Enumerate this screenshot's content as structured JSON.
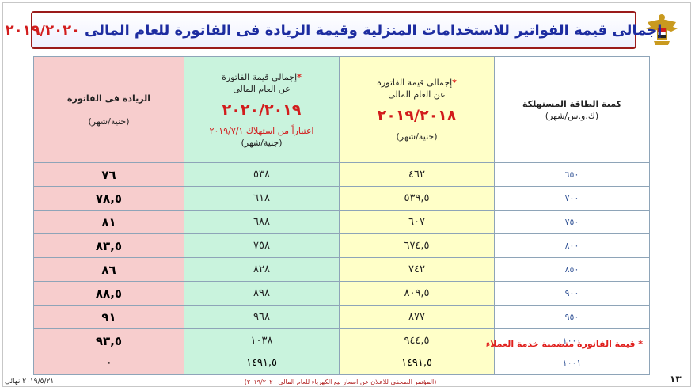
{
  "title": {
    "text": "إجمالى قيمة الفواتير للاستخدامات المنزلية وقيمة الزيادة فى الفاتورة للعام المالى",
    "year": "٢٠١٩/٢٠٢٠"
  },
  "table": {
    "headers": {
      "consumption": {
        "line1": "كمية الطاقة المستهلكة",
        "line2": "(ك.و.س/شهر)"
      },
      "bill_2018": {
        "star": "*",
        "line1": "إجمالى قيمة الفاتورة",
        "line2": "عن العام المالى",
        "year": "٢٠١٩/٢٠١٨",
        "unit": "(جنية/شهر)"
      },
      "bill_2019": {
        "star": "*",
        "line1": "إجمالى قيمة الفاتورة",
        "line2": "عن العام المالى",
        "year": "٢٠٢٠/٢٠١٩",
        "note": "اعتباراً من استهلاك ٢٠١٩/٧/١",
        "unit": "(جنية/شهر)"
      },
      "increase": {
        "line1": "الزيادة فى الفاتورة",
        "line2": "(جنية/شهر)"
      }
    },
    "rows": [
      {
        "consumption": "٦٥٠",
        "bill_2018": "٤٦٢",
        "bill_2019": "٥٣٨",
        "increase": "٧٦"
      },
      {
        "consumption": "٧٠٠",
        "bill_2018": "٥٣٩,٥",
        "bill_2019": "٦١٨",
        "increase": "٧٨,٥"
      },
      {
        "consumption": "٧٥٠",
        "bill_2018": "٦٠٧",
        "bill_2019": "٦٨٨",
        "increase": "٨١"
      },
      {
        "consumption": "٨٠٠",
        "bill_2018": "٦٧٤,٥",
        "bill_2019": "٧٥٨",
        "increase": "٨٣,٥"
      },
      {
        "consumption": "٨٥٠",
        "bill_2018": "٧٤٢",
        "bill_2019": "٨٢٨",
        "increase": "٨٦"
      },
      {
        "consumption": "٩٠٠",
        "bill_2018": "٨٠٩,٥",
        "bill_2019": "٨٩٨",
        "increase": "٨٨,٥"
      },
      {
        "consumption": "٩٥٠",
        "bill_2018": "٨٧٧",
        "bill_2019": "٩٦٨",
        "increase": "٩١"
      },
      {
        "consumption": "١٠٠٠",
        "bill_2018": "٩٤٤,٥",
        "bill_2019": "١٠٣٨",
        "increase": "٩٣,٥"
      }
    ],
    "footnote": "* قيمة الفاتورة متضمنة خدمة العملاء",
    "last_row": {
      "consumption": "١٠٠١",
      "bill_2018": "١٤٩١,٥",
      "bill_2019": "١٤٩١,٥",
      "increase": "٠"
    }
  },
  "footer": {
    "page_number": "١٣",
    "center": "(المؤتمر الصحفى للاعلان عن اسعار بيع الكهرباء للعام المالى ٢٠١٩/٢٠٢٠)",
    "left": "٢٠١٩/٥/٢١ نهائى"
  },
  "colors": {
    "title_text": "#1d2ca0",
    "title_year": "#d21c1c",
    "title_border": "#9a1a1a",
    "col_consumption": "#ffffff",
    "col_2018": "#ffffc8",
    "col_2019": "#c9f3dd",
    "col_increase": "#f7cdcd"
  }
}
